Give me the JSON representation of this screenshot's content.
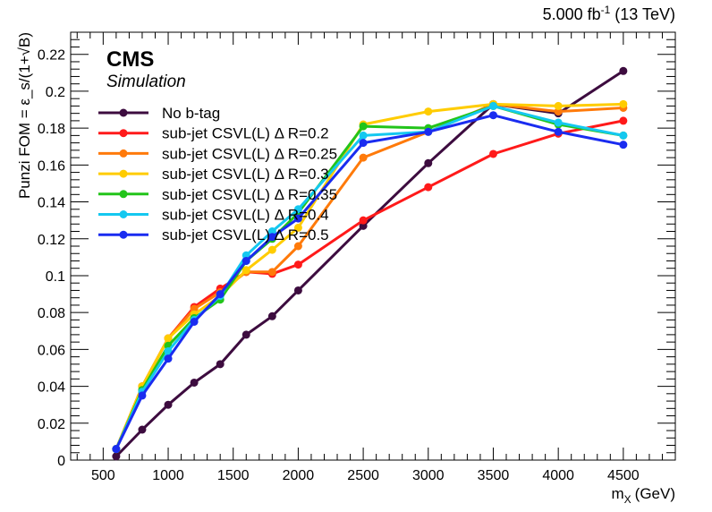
{
  "header": {
    "lumi": "5.000 fb",
    "lumi_exp": "-1",
    "energy": "(13 TeV)"
  },
  "labels": {
    "cms": "CMS",
    "simulation": "Simulation"
  },
  "chart_data": {
    "type": "line",
    "xlabel": "m",
    "xlabel_sub": "X",
    "xlabel_unit": "(GeV)",
    "ylabel": "Punzi FOM = ε_s/(1+√B)",
    "xlim": [
      250,
      4900
    ],
    "ylim": [
      0,
      0.232
    ],
    "x_ticks": [
      500,
      1000,
      1500,
      2000,
      2500,
      3000,
      3500,
      4000,
      4500
    ],
    "x_tick_labels": [
      "500",
      "1000",
      "1500",
      "2000",
      "2500",
      "3000",
      "3500",
      "4000",
      "4500"
    ],
    "y_ticks": [
      0,
      0.02,
      0.04,
      0.06,
      0.08,
      0.1,
      0.12,
      0.14,
      0.16,
      0.18,
      0.2,
      0.22
    ],
    "y_tick_labels": [
      "0",
      "0.02",
      "0.04",
      "0.06",
      "0.08",
      "0.1",
      "0.12",
      "0.14",
      "0.16",
      "0.18",
      "0.2",
      "0.22"
    ],
    "legend_position": "top-left",
    "x": [
      600,
      800,
      1000,
      1200,
      1400,
      1600,
      1800,
      2000,
      2500,
      3000,
      3500,
      4000,
      4500
    ],
    "series": [
      {
        "name": "No b-tag",
        "color": "#3d0c3f",
        "values": [
          0.002,
          0.0165,
          0.03,
          0.042,
          0.052,
          0.068,
          0.078,
          0.092,
          0.127,
          0.161,
          0.193,
          0.188,
          0.211
        ]
      },
      {
        "name": "sub-jet CSVL(L) Δ R=0.2",
        "color": "#ff1a1a",
        "values": [
          0.006,
          0.04,
          0.066,
          0.083,
          0.093,
          0.102,
          0.101,
          0.106,
          0.13,
          0.148,
          0.166,
          0.177,
          0.184
        ]
      },
      {
        "name": "sub-jet CSVL(L) Δ R=0.25",
        "color": "#ff7a0a",
        "values": [
          0.006,
          0.04,
          0.066,
          0.082,
          0.091,
          0.102,
          0.102,
          0.116,
          0.164,
          0.178,
          0.193,
          0.189,
          0.191
        ]
      },
      {
        "name": "sub-jet CSVL(L) Δ R=0.3",
        "color": "#ffcc00",
        "values": [
          0.006,
          0.04,
          0.066,
          0.079,
          0.089,
          0.103,
          0.114,
          0.126,
          0.182,
          0.189,
          0.193,
          0.192,
          0.193
        ]
      },
      {
        "name": "sub-jet CSVL(L) Δ R=0.35",
        "color": "#22c41a",
        "values": [
          0.006,
          0.038,
          0.062,
          0.077,
          0.087,
          0.108,
          0.12,
          0.134,
          0.181,
          0.18,
          0.192,
          0.182,
          0.176
        ]
      },
      {
        "name": "sub-jet CSVL(L) Δ R=0.4",
        "color": "#14c8f0",
        "values": [
          0.006,
          0.037,
          0.059,
          0.076,
          0.089,
          0.111,
          0.124,
          0.136,
          0.176,
          0.178,
          0.192,
          0.183,
          0.176
        ]
      },
      {
        "name": "sub-jet CSVL(L) Δ R=0.5",
        "color": "#1a2cf0",
        "values": [
          0.006,
          0.035,
          0.055,
          0.075,
          0.09,
          0.108,
          0.121,
          0.131,
          0.172,
          0.178,
          0.187,
          0.178,
          0.171
        ]
      }
    ]
  }
}
